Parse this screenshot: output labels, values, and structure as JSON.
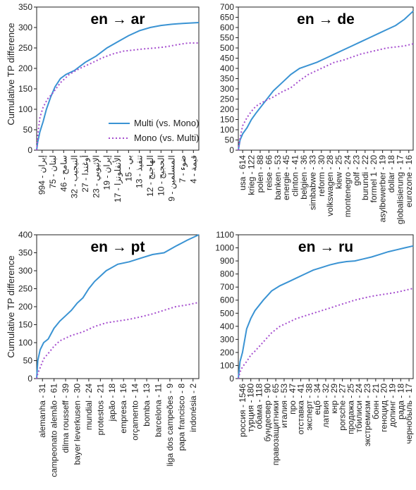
{
  "figure": {
    "ylabel": "Cumulative TP difference",
    "legend": {
      "placement": "bottom-right of first panel"
    },
    "colors": {
      "multi": "#3a93d3",
      "mono": "#a64fcf"
    }
  },
  "chart_data": [
    {
      "type": "line",
      "title": "en → ar",
      "ylabel": "Cumulative TP difference",
      "ylim": [
        0,
        350
      ],
      "yticks": [
        0,
        50,
        100,
        150,
        200,
        250,
        300,
        350
      ],
      "grid": false,
      "xtick_labels": [
        "إيران - 994",
        "لبنان - 75",
        "سامح - 46",
        "النيجيب - 32",
        "أوغندا - 27",
        "الإثيوبي - 23",
        "إيران - 19",
        "الأنفلونزا - 17",
        "بي - 15",
        "تنفيذ - 13",
        "الهاجيج - 12",
        "الحجيج - 10",
        "المسلمين - 9",
        "ضوء - 7",
        "قيمة - 4"
      ],
      "legend": [
        {
          "name": "Multi (vs. Mono)",
          "style": "solid"
        },
        {
          "name": "Mono (vs. Multi)",
          "style": "dotted"
        }
      ],
      "series": [
        {
          "name": "Multi (vs. Mono)",
          "x": [
            0,
            0.1,
            0.3,
            0.6,
            0.9,
            1.3,
            1.7,
            2.2,
            2.7,
            3.5,
            4.5,
            5.5,
            6.5,
            7.5,
            8.5,
            9.5,
            10.5,
            11.5,
            12.5,
            13.5,
            15
          ],
          "y": [
            0,
            20,
            45,
            70,
            100,
            130,
            155,
            175,
            185,
            195,
            215,
            230,
            250,
            265,
            280,
            292,
            300,
            305,
            308,
            310,
            312
          ]
        },
        {
          "name": "Mono (vs. Multi)",
          "x": [
            0,
            0.1,
            0.3,
            0.6,
            1.0,
            1.5,
            2.2,
            3.0,
            4.0,
            5.0,
            6.0,
            7.0,
            8.0,
            9.0,
            10.0,
            11.0,
            12.0,
            13.0,
            14.0,
            15
          ],
          "y": [
            0,
            35,
            80,
            105,
            125,
            140,
            165,
            185,
            200,
            212,
            225,
            235,
            242,
            245,
            248,
            250,
            253,
            258,
            262,
            262
          ]
        }
      ]
    },
    {
      "type": "line",
      "title": "en → de",
      "ylim": [
        0,
        700
      ],
      "yticks": [
        0,
        50,
        100,
        150,
        200,
        250,
        300,
        350,
        400,
        450,
        500,
        550,
        600,
        650,
        700
      ],
      "grid": false,
      "xtick_labels": [
        "usa - 614",
        "krieg - 122",
        "polen - 88",
        "reise - 66",
        "banken - 53",
        "energie - 45",
        "clinton - 41",
        "belgien - 36",
        "simbabwe - 33",
        "reform - 30",
        "volkswagen - 28",
        "kiew - 25",
        "montenegro - 24",
        "golf - 23",
        "burundi - 22",
        "formel 1 - 20",
        "asylbewerber - 19",
        "dollar - 18",
        "globalisierung - 17",
        "eurozone - 16"
      ],
      "series": [
        {
          "name": "Multi (vs. Mono)",
          "x": [
            0,
            0.2,
            0.5,
            1.0,
            1.5,
            2.0,
            3.0,
            4.0,
            5.0,
            6.0,
            7.0,
            8.0,
            9.0,
            10.0,
            11.0,
            12.0,
            13.0,
            14.0,
            15.0,
            16.0,
            17.0,
            18.0,
            19.0,
            20.0
          ],
          "y": [
            0,
            50,
            80,
            110,
            150,
            180,
            235,
            290,
            330,
            370,
            400,
            415,
            430,
            450,
            470,
            490,
            510,
            530,
            550,
            570,
            590,
            610,
            640,
            680
          ]
        },
        {
          "name": "Mono (vs. Multi)",
          "x": [
            0,
            0.2,
            0.5,
            1.0,
            1.5,
            2.0,
            3.0,
            4.0,
            5.0,
            6.0,
            7.0,
            8.0,
            9.0,
            10.0,
            11.0,
            12.0,
            13.0,
            14.0,
            15.0,
            16.0,
            17.0,
            18.0,
            19.0,
            20.0
          ],
          "y": [
            0,
            60,
            120,
            160,
            190,
            215,
            240,
            260,
            285,
            305,
            340,
            370,
            390,
            410,
            430,
            440,
            455,
            470,
            480,
            490,
            500,
            505,
            510,
            520
          ]
        }
      ]
    },
    {
      "type": "line",
      "title": "en → pt",
      "ylabel": "Cumulative TP difference",
      "ylim": [
        0,
        400
      ],
      "yticks": [
        0,
        50,
        100,
        150,
        200,
        250,
        300,
        350,
        400
      ],
      "grid": false,
      "xtick_labels": [
        "alemanha - 31",
        "campeonato alemão - 61",
        "dilma rousseff - 39",
        "bayer leverkusen - 30",
        "mundial - 24",
        "protestos - 21",
        "japão - 18",
        "empresa - 16",
        "orçamento - 14",
        "bomba - 13",
        "barcelona - 11",
        "liga dos campeões - 9",
        "papa francisco - 8",
        "indonésia - 2"
      ],
      "series": [
        {
          "name": "Multi (vs. Mono)",
          "x": [
            0,
            0.1,
            0.3,
            0.6,
            1.0,
            1.5,
            2.0,
            2.5,
            3.0,
            3.5,
            4.0,
            4.5,
            5.0,
            6.0,
            7.0,
            8.0,
            9.0,
            10.0,
            11.0,
            12.0,
            13.0,
            14.0
          ],
          "y": [
            0,
            50,
            80,
            100,
            110,
            140,
            160,
            175,
            190,
            210,
            225,
            250,
            270,
            300,
            318,
            325,
            335,
            345,
            350,
            368,
            385,
            400
          ]
        },
        {
          "name": "Mono (vs. Multi)",
          "x": [
            0,
            0.1,
            0.3,
            0.6,
            1.0,
            1.5,
            2.0,
            3.0,
            4.0,
            5.0,
            6.0,
            7.0,
            8.0,
            9.0,
            10.0,
            11.0,
            12.0,
            13.0,
            14.0
          ],
          "y": [
            0,
            15,
            30,
            55,
            70,
            90,
            105,
            120,
            130,
            145,
            155,
            160,
            165,
            172,
            180,
            190,
            200,
            205,
            212
          ]
        }
      ]
    },
    {
      "type": "line",
      "title": "en → ru",
      "ylim": [
        0,
        1100
      ],
      "yticks": [
        0,
        100,
        200,
        300,
        400,
        500,
        600,
        700,
        800,
        900,
        1000,
        1100
      ],
      "grid": false,
      "xtick_labels": [
        "россия - 1546",
        "турция - 180",
        "обама - 118",
        "бундесвер - 90",
        "правозащитники - 65",
        "италия - 53",
        "про - 47",
        "отставка - 41",
        "эксперт - 38",
        "ецб - 34",
        "латвия - 32",
        "кнр - 29",
        "porsche - 27",
        "продажа - 25",
        "тбилиси - 24",
        "экстремизм - 23",
        "бонн - 21",
        "геноцид - 20",
        "допинг - 19",
        "рада - 18",
        "чернобыль - 17"
      ],
      "series": [
        {
          "name": "Multi (vs. Mono)",
          "x": [
            0,
            0.2,
            0.5,
            1.0,
            1.5,
            2.0,
            3.0,
            4.0,
            5.0,
            6.0,
            7.0,
            8.0,
            9.0,
            10.0,
            11.0,
            12.0,
            13.0,
            14.0,
            15.0,
            16.0,
            17.0,
            18.0,
            19.0,
            20.0,
            21.0
          ],
          "y": [
            0,
            130,
            200,
            380,
            460,
            520,
            600,
            670,
            710,
            740,
            770,
            800,
            830,
            850,
            870,
            885,
            895,
            900,
            915,
            930,
            950,
            970,
            985,
            1000,
            1015
          ]
        },
        {
          "name": "Mono (vs. Multi)",
          "x": [
            0,
            0.2,
            0.5,
            1.0,
            1.5,
            2.0,
            3.0,
            4.0,
            5.0,
            6.0,
            7.0,
            8.0,
            9.0,
            10.0,
            11.0,
            12.0,
            13.0,
            14.0,
            15.0,
            16.0,
            17.0,
            18.0,
            19.0,
            20.0,
            21.0
          ],
          "y": [
            0,
            50,
            90,
            130,
            180,
            210,
            280,
            350,
            400,
            430,
            460,
            480,
            500,
            520,
            540,
            560,
            580,
            600,
            615,
            630,
            640,
            650,
            660,
            675,
            690
          ]
        }
      ]
    }
  ]
}
